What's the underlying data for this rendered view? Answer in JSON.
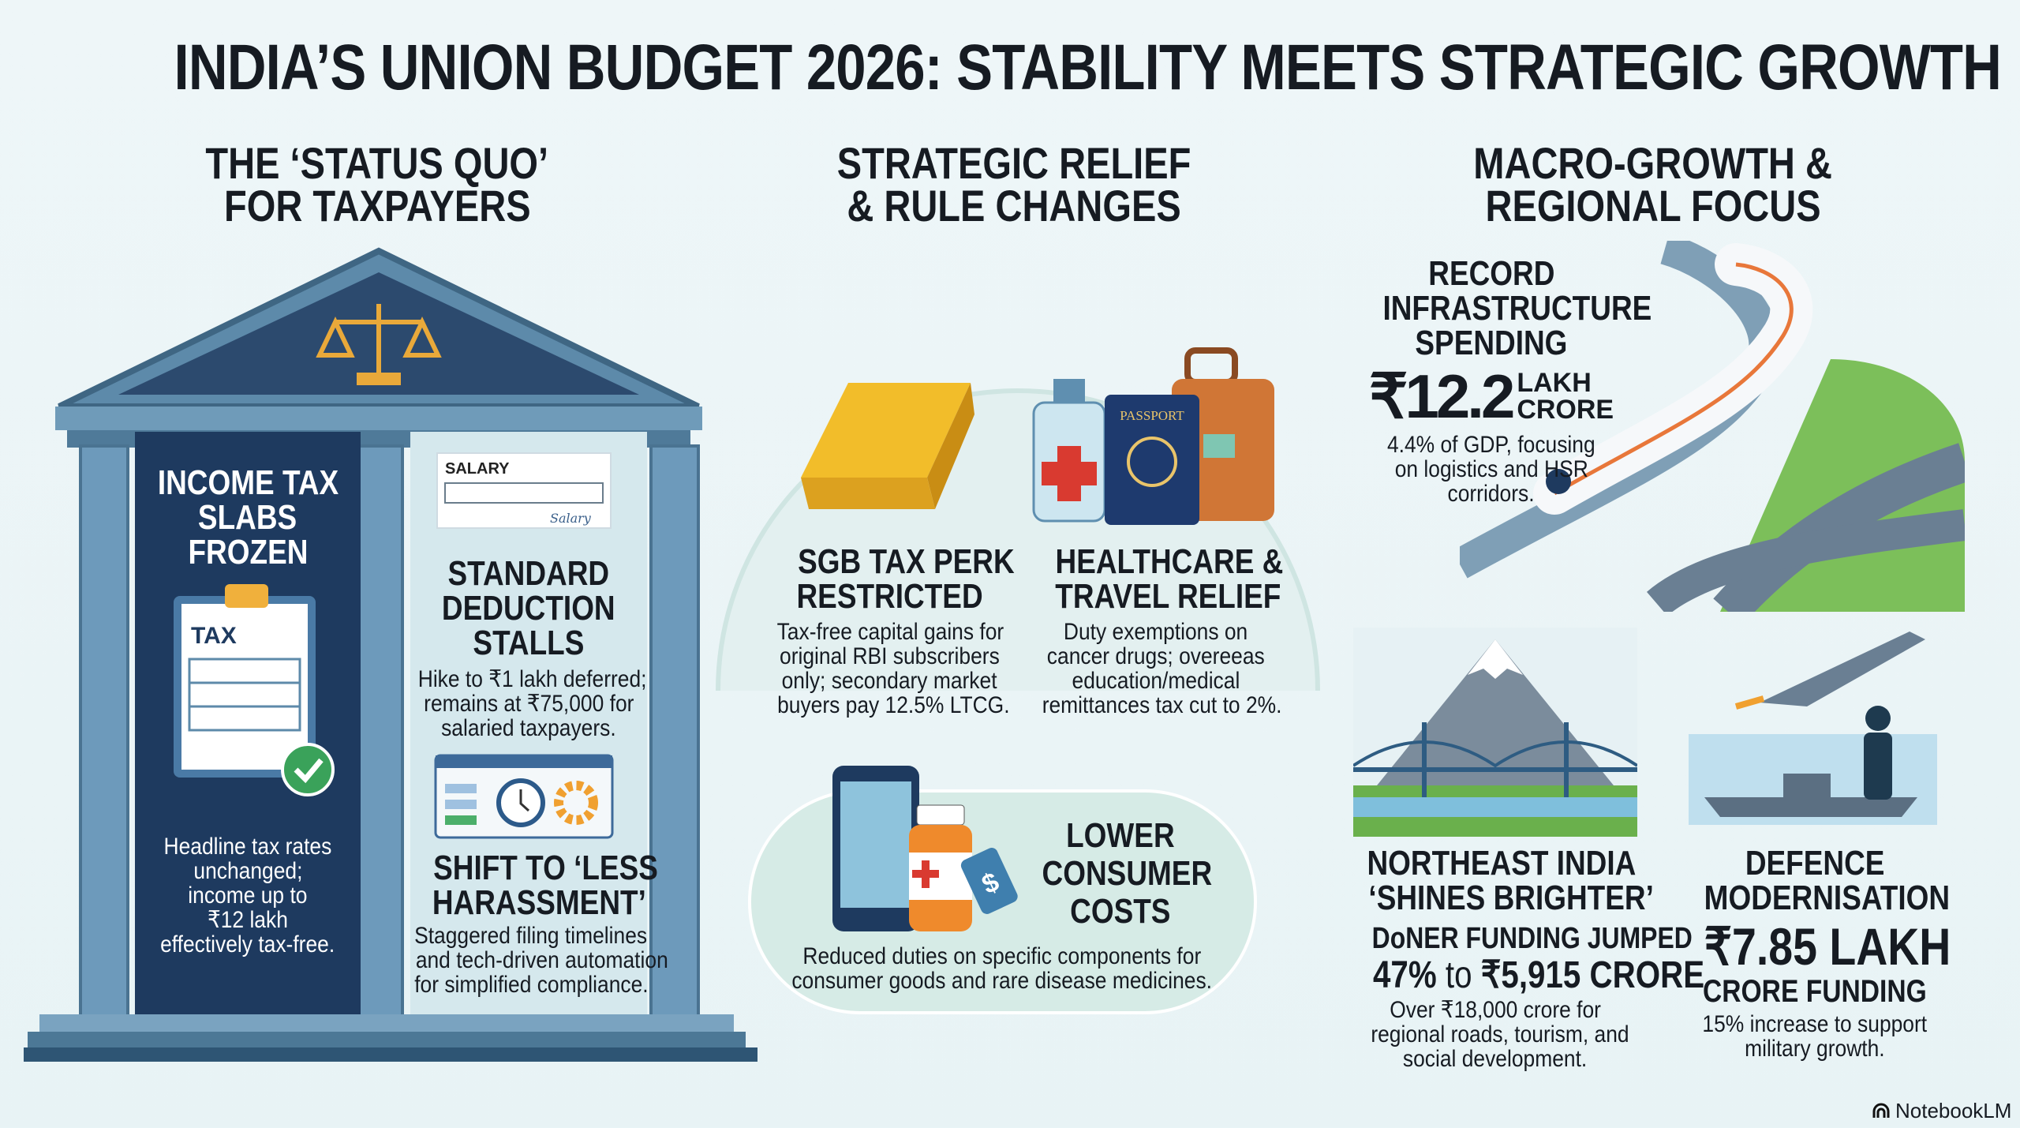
{
  "title": "INDIA’S UNION BUDGET 2026: STABILITY MEETS STRATEGIC GROWTH",
  "columns": {
    "left": {
      "heading": [
        "THE ‘STATUS QUO’",
        "FOR TAXPAYERS"
      ],
      "income_tax": {
        "title": [
          "INCOME TAX",
          "SLABS",
          "FROZEN"
        ],
        "icon_label": "TAX",
        "desc": [
          "Headline tax rates",
          "unchanged;",
          "income up to",
          "₹12 lakh",
          "effectively tax-free."
        ]
      },
      "salary_icon": {
        "label": "SALARY",
        "signature": "Salary"
      },
      "standard_deduction": {
        "title": [
          "STANDARD",
          "DEDUCTION",
          "STALLS"
        ],
        "desc": [
          "Hike to ₹1 lakh deferred;",
          "remains at ₹75,000 for",
          "salaried taxpayers."
        ]
      },
      "less_harassment": {
        "title": [
          "SHIFT TO ‘LESS",
          "HARASSMENT’"
        ],
        "desc": [
          "Staggered filing timelines",
          "and tech-driven automation",
          "for simplified compliance."
        ]
      }
    },
    "middle": {
      "heading": [
        "STRATEGIC RELIEF",
        "& RULE CHANGES"
      ],
      "sgb": {
        "title": [
          "SGB TAX PERK",
          "RESTRICTED"
        ],
        "desc": [
          "Tax-free capital gains for",
          "original RBI subscribers",
          "only; secondary market",
          "buyers pay 12.5% LTCG."
        ]
      },
      "healthcare": {
        "title": [
          "HEALTHCARE &",
          "TRAVEL RELIEF"
        ],
        "passport_label": "PASSPORT",
        "desc": [
          "Duty exemptions on",
          "cancer drugs; overeeas",
          "education/medical",
          "remittances tax cut to 2%."
        ]
      },
      "consumer": {
        "title": [
          "LOWER",
          "CONSUMER",
          "COSTS"
        ],
        "tag_symbol": "$",
        "desc": [
          "Reduced duties on specific components for",
          "consumer goods and rare disease medicines."
        ]
      }
    },
    "right": {
      "heading": [
        "MACRO-GROWTH &",
        "REGIONAL FOCUS"
      ],
      "infra": {
        "title": [
          "RECORD",
          "INFRASTRUCTURE",
          "SPENDING"
        ],
        "amount": "₹12.2",
        "unit": [
          "LAKH",
          "CRORE"
        ],
        "desc": [
          "4.4% of GDP, focusing",
          "on logistics and HSR",
          "corridors."
        ]
      },
      "northeast": {
        "title": [
          "NORTHEAST INDIA",
          "‘SHINES BRIGHTER’"
        ],
        "sub": "DoNER FUNDING JUMPED",
        "stat_pct": "47%",
        "stat_to": "to",
        "stat_amount": "₹5,915 CRORE",
        "desc": [
          "Over ₹18,000 crore for",
          "regional roads, tourism, and",
          "social development."
        ]
      },
      "defence": {
        "title": [
          "DEFENCE",
          "MODERNISATION"
        ],
        "amount": "₹7.85 LAKH",
        "amount_sub": "CRORE FUNDING",
        "desc": [
          "15% increase to support",
          "military growth."
        ]
      }
    }
  },
  "watermark": "NotebookLM",
  "colors": {
    "navy": "#1e3a5f",
    "column": "#5f8fb0",
    "gold": "#e9a93a",
    "green": "#3aa25a",
    "orange": "#e8802f",
    "red": "#d93a30"
  }
}
